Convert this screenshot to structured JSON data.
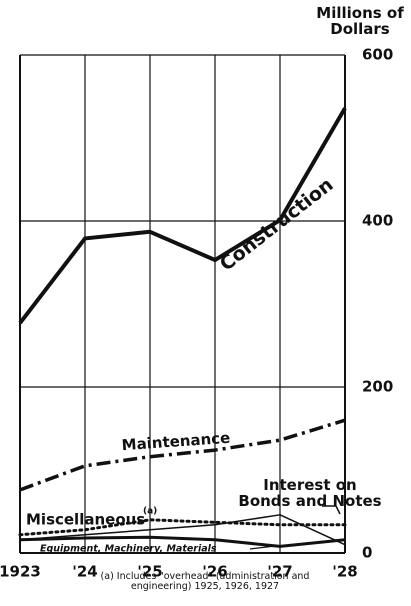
{
  "chart_data": {
    "type": "line",
    "y_axis_label": "Millions of Dollars",
    "footnote": "(a) Includes \"overhead\" (administration and engineering) 1925, 1926, 1927",
    "footnote_marker": "(a)",
    "categories": [
      "1923",
      "'24",
      "'25",
      "'26",
      "'27",
      "'28"
    ],
    "ylim": [
      0,
      600
    ],
    "yticks": [
      0,
      200,
      400,
      600
    ],
    "grid": true,
    "series": [
      {
        "name": "Construction",
        "color": "#111111",
        "style": "solid",
        "width": 4,
        "values": [
          277,
          379,
          387,
          353,
          401,
          536
        ]
      },
      {
        "name": "Maintenance",
        "color": "#111111",
        "style": "dashdot",
        "width": 3.5,
        "values": [
          76,
          105,
          116,
          124,
          136,
          160
        ]
      },
      {
        "name": "Miscellaneous",
        "color": "#111111",
        "style": "dotted",
        "width": 3,
        "values": [
          22,
          28,
          40,
          37,
          34,
          34
        ]
      },
      {
        "name": "Interest on Bonds and Notes",
        "color": "#111111",
        "style": "solid",
        "width": 1.5,
        "values": [
          16,
          22,
          28,
          34,
          46,
          10
        ]
      },
      {
        "name": "Equipment, Machinery, Materials",
        "color": "#111111",
        "style": "solid",
        "width": 3,
        "values": [
          16,
          18,
          19,
          16,
          8,
          16
        ]
      }
    ]
  }
}
